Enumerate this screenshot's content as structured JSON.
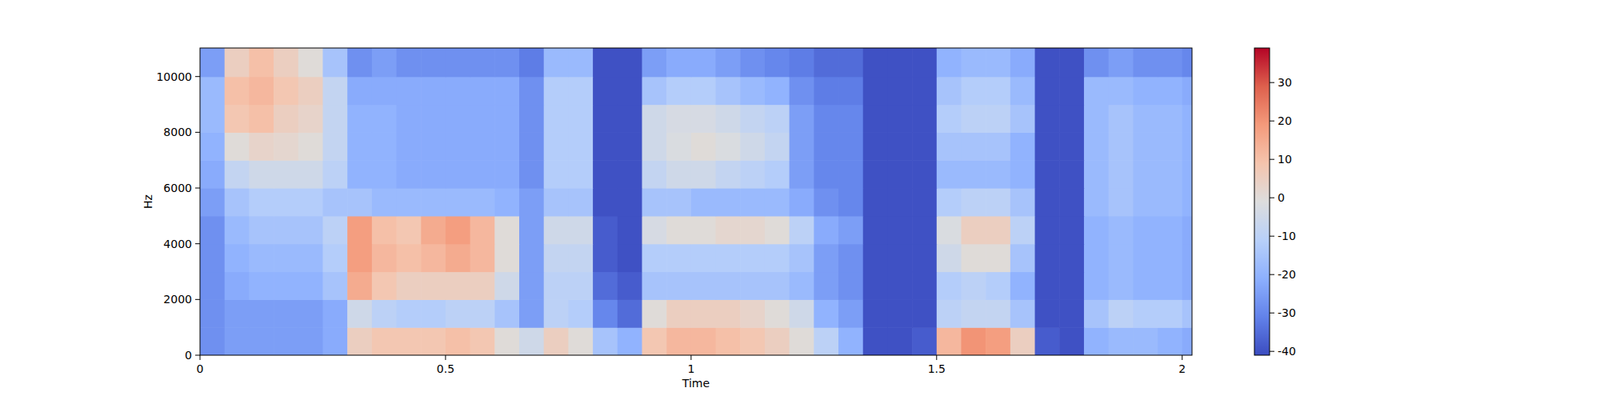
{
  "chart_data": {
    "type": "heatmap",
    "x_label": "Time",
    "y_label": "Hz",
    "xlim": [
      0,
      2.02
    ],
    "ylim": [
      0,
      11025
    ],
    "xticks": [
      0,
      0.5,
      1,
      1.5,
      2
    ],
    "yticks": [
      0,
      2000,
      4000,
      6000,
      8000,
      10000
    ],
    "x_bins": [
      0,
      0.05,
      0.1,
      0.15,
      0.2,
      0.25,
      0.3,
      0.35,
      0.4,
      0.45,
      0.5,
      0.55,
      0.6,
      0.65,
      0.7,
      0.75,
      0.8,
      0.85,
      0.9,
      0.95,
      1,
      1.05,
      1.1,
      1.15,
      1.2,
      1.25,
      1.3,
      1.35,
      1.4,
      1.45,
      1.5,
      1.55,
      1.6,
      1.65,
      1.7,
      1.75,
      1.8,
      1.85,
      1.9,
      1.95,
      2,
      2.02
    ],
    "y_bins": [
      0,
      1000,
      2000,
      3000,
      4000,
      5000,
      6000,
      7000,
      8000,
      9000,
      10000,
      11025
    ],
    "values": [
      [
        -28,
        -25,
        -25,
        -25,
        -25,
        -22,
        5,
        8,
        8,
        8,
        10,
        8,
        0,
        -5,
        5,
        0,
        -15,
        -20,
        8,
        12,
        12,
        10,
        8,
        5,
        0,
        -10,
        -20,
        -40,
        -40,
        -38,
        12,
        20,
        18,
        5,
        -38,
        -40,
        -20,
        -18,
        -18,
        -20,
        -22
      ],
      [
        -28,
        -25,
        -25,
        -25,
        -25,
        -22,
        -5,
        -10,
        -12,
        -12,
        -10,
        -10,
        -15,
        -25,
        -10,
        -12,
        -30,
        -35,
        0,
        5,
        5,
        5,
        3,
        0,
        -5,
        -20,
        -25,
        -40,
        -40,
        -40,
        -10,
        -8,
        -8,
        -15,
        -40,
        -40,
        -15,
        -10,
        -12,
        -12,
        -15
      ],
      [
        -28,
        -22,
        -20,
        -20,
        -20,
        -15,
        15,
        8,
        5,
        5,
        5,
        5,
        -5,
        -25,
        -10,
        -10,
        -35,
        -38,
        -15,
        -15,
        -15,
        -15,
        -15,
        -15,
        -18,
        -25,
        -28,
        -40,
        -40,
        -40,
        -12,
        -10,
        -12,
        -20,
        -40,
        -40,
        -20,
        -18,
        -20,
        -20,
        -22
      ],
      [
        -28,
        -20,
        -18,
        -18,
        -18,
        -12,
        18,
        12,
        10,
        12,
        15,
        12,
        0,
        -25,
        -8,
        -8,
        -38,
        -40,
        -12,
        -12,
        -12,
        -12,
        -12,
        -12,
        -15,
        -25,
        -28,
        -40,
        -40,
        -40,
        -5,
        0,
        0,
        -15,
        -40,
        -40,
        -20,
        -18,
        -20,
        -20,
        -22
      ],
      [
        -28,
        -18,
        -15,
        -15,
        -15,
        -10,
        18,
        10,
        8,
        15,
        18,
        12,
        0,
        -25,
        -5,
        -5,
        -38,
        -40,
        -3,
        0,
        0,
        2,
        2,
        0,
        -10,
        -22,
        -25,
        -40,
        -40,
        -40,
        -2,
        5,
        5,
        -10,
        -40,
        -40,
        -20,
        -18,
        -20,
        -20,
        -22
      ],
      [
        -25,
        -15,
        -12,
        -12,
        -12,
        -15,
        -15,
        -18,
        -18,
        -18,
        -18,
        -18,
        -20,
        -25,
        -15,
        -15,
        -40,
        -40,
        -15,
        -15,
        -18,
        -18,
        -18,
        -18,
        -22,
        -28,
        -30,
        -40,
        -40,
        -40,
        -12,
        -10,
        -10,
        -15,
        -40,
        -40,
        -18,
        -15,
        -18,
        -18,
        -20
      ],
      [
        -22,
        -8,
        -5,
        -5,
        -5,
        -10,
        -20,
        -20,
        -22,
        -22,
        -22,
        -22,
        -22,
        -28,
        -12,
        -12,
        -40,
        -40,
        -8,
        -5,
        -5,
        -8,
        -10,
        -12,
        -25,
        -30,
        -30,
        -40,
        -40,
        -40,
        -18,
        -18,
        -18,
        -20,
        -40,
        -40,
        -18,
        -15,
        -18,
        -18,
        -20
      ],
      [
        -20,
        0,
        3,
        2,
        0,
        -8,
        -20,
        -20,
        -22,
        -22,
        -22,
        -22,
        -22,
        -28,
        -12,
        -12,
        -40,
        -40,
        -5,
        -2,
        0,
        -2,
        -5,
        -8,
        -25,
        -30,
        -30,
        -40,
        -40,
        -40,
        -15,
        -15,
        -15,
        -20,
        -40,
        -40,
        -18,
        -15,
        -18,
        -18,
        -20
      ],
      [
        -18,
        8,
        10,
        5,
        3,
        -8,
        -20,
        -20,
        -22,
        -22,
        -22,
        -22,
        -22,
        -28,
        -12,
        -12,
        -40,
        -40,
        -5,
        -3,
        -3,
        -5,
        -8,
        -10,
        -25,
        -30,
        -30,
        -40,
        -40,
        -40,
        -12,
        -10,
        -10,
        -15,
        -40,
        -40,
        -18,
        -15,
        -18,
        -18,
        -20
      ],
      [
        -18,
        10,
        12,
        8,
        5,
        -8,
        -22,
        -22,
        -22,
        -22,
        -22,
        -22,
        -22,
        -28,
        -12,
        -12,
        -40,
        -40,
        -15,
        -12,
        -12,
        -15,
        -18,
        -20,
        -28,
        -32,
        -32,
        -40,
        -40,
        -40,
        -15,
        -12,
        -12,
        -18,
        -40,
        -40,
        -18,
        -18,
        -20,
        -20,
        -22
      ],
      [
        -25,
        5,
        10,
        5,
        0,
        -15,
        -28,
        -25,
        -28,
        -28,
        -28,
        -28,
        -28,
        -32,
        -18,
        -18,
        -40,
        -40,
        -25,
        -22,
        -22,
        -25,
        -28,
        -30,
        -32,
        -35,
        -35,
        -40,
        -40,
        -40,
        -20,
        -18,
        -18,
        -22,
        -40,
        -40,
        -28,
        -25,
        -28,
        -28,
        -30
      ]
    ],
    "color_range": [
      -41,
      39
    ],
    "color_ticks": [
      -40,
      -30,
      -20,
      -10,
      0,
      10,
      20,
      30
    ]
  }
}
